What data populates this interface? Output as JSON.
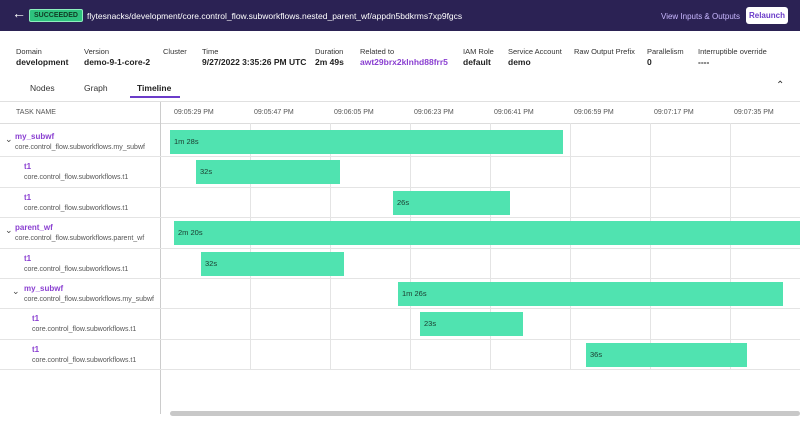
{
  "top_bar": {
    "status": "SUCCEEDED",
    "breadcrumb": "flytesnacks/development/core.control_flow.subworkflows.nested_parent_wf/",
    "execution_id": "appdn5bdkrms7xp9fgcs",
    "view_inputs": "View Inputs & Outputs",
    "relaunch": "Relaunch"
  },
  "details": [
    {
      "label": "Domain",
      "value": "development"
    },
    {
      "label": "Version",
      "value": "demo-9-1-core-2"
    },
    {
      "label": "Cluster",
      "value": ""
    },
    {
      "label": "Time",
      "value": "9/27/2022 3:35:26 PM UTC"
    },
    {
      "label": "Duration",
      "value": "2m 49s"
    },
    {
      "label": "Related to",
      "value": "awt29brx2klnhd88frr5"
    },
    {
      "label": "IAM Role",
      "value": "default"
    },
    {
      "label": "Service Account",
      "value": "demo"
    },
    {
      "label": "Raw Output Prefix",
      "value": ""
    },
    {
      "label": "Parallelism",
      "value": "0"
    },
    {
      "label": "Interruptible override",
      "value": "----"
    }
  ],
  "tabs": [
    "Nodes",
    "Graph",
    "Timeline"
  ],
  "timeline": {
    "column_header": "TASK NAME",
    "times": [
      "09:05:29 PM",
      "09:05:47 PM",
      "09:06:05 PM",
      "09:06:23 PM",
      "09:06:41 PM",
      "09:06:59 PM",
      "09:07:17 PM",
      "09:07:35 PM"
    ],
    "rows": [
      {
        "name": "my_subwf",
        "type": "core.control_flow.subworkflows.my_subwf",
        "duration": "1m 28s"
      },
      {
        "name": "t1",
        "type": "core.control_flow.subworkflows.t1",
        "duration": "32s"
      },
      {
        "name": "t1",
        "type": "core.control_flow.subworkflows.t1",
        "duration": "26s"
      },
      {
        "name": "parent_wf",
        "type": "core.control_flow.subworkflows.parent_wf",
        "duration": "2m 20s"
      },
      {
        "name": "t1",
        "type": "core.control_flow.subworkflows.t1",
        "duration": "32s"
      },
      {
        "name": "my_subwf",
        "type": "core.control_flow.subworkflows.my_subwf",
        "duration": "1m 26s"
      },
      {
        "name": "t1",
        "type": "core.control_flow.subworkflows.t1",
        "duration": "23s"
      },
      {
        "name": "t1",
        "type": "core.control_flow.subworkflows.t1",
        "duration": "36s"
      }
    ]
  }
}
